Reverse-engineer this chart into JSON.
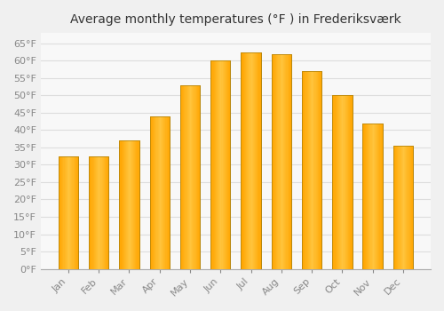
{
  "title": "Average monthly temperatures (°F ) in Frederiksværk",
  "months": [
    "Jan",
    "Feb",
    "Mar",
    "Apr",
    "May",
    "Jun",
    "Jul",
    "Aug",
    "Sep",
    "Oct",
    "Nov",
    "Dec"
  ],
  "values": [
    32.5,
    32.5,
    37.0,
    44.0,
    53.0,
    60.0,
    62.5,
    62.0,
    57.0,
    50.0,
    42.0,
    35.5
  ],
  "bar_color_light": "#FFD966",
  "bar_color_dark": "#FFA500",
  "background_color": "#f0f0f0",
  "plot_bg_color": "#f8f8f8",
  "grid_color": "#dddddd",
  "ylim": [
    0,
    68
  ],
  "ytick_step": 5,
  "title_fontsize": 10,
  "tick_fontsize": 8,
  "tick_color": "#888888",
  "label_color": "#888888"
}
